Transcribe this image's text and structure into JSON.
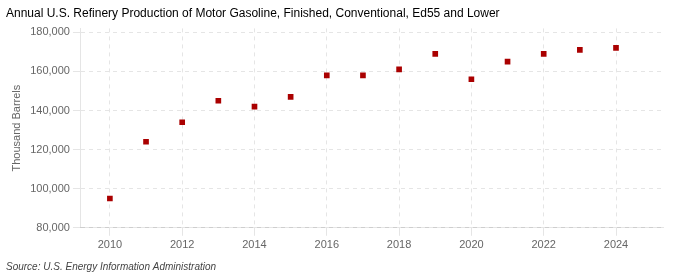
{
  "chart_data": {
    "type": "scatter",
    "title": "Annual U.S. Refinery Production of Motor Gasoline, Finished, Conventional, Ed55 and Lower",
    "ylabel": "Thousand Barrels",
    "source": "Source: U.S. Energy Information Administration",
    "x": [
      2010,
      2011,
      2012,
      2013,
      2014,
      2015,
      2016,
      2017,
      2018,
      2019,
      2020,
      2021,
      2022,
      2023,
      2024
    ],
    "values": [
      95000,
      124000,
      134000,
      145000,
      142000,
      147000,
      158000,
      158000,
      161000,
      169000,
      156000,
      165000,
      169000,
      171000,
      172000
    ],
    "color": "#aa0000",
    "marker": "square",
    "xlim": [
      2009.2,
      2025.3
    ],
    "xticks": [
      2010,
      2012,
      2014,
      2016,
      2018,
      2020,
      2022,
      2024
    ],
    "ylim": [
      80000,
      182000
    ],
    "yticks": [
      {
        "value": 80000,
        "label": "80,000"
      },
      {
        "value": 100000,
        "label": "100,000"
      },
      {
        "value": 120000,
        "label": "120,000"
      },
      {
        "value": 140000,
        "label": "140,000"
      },
      {
        "value": 160000,
        "label": "160,000"
      },
      {
        "value": 180000,
        "label": "180,000"
      }
    ],
    "grid": true
  }
}
